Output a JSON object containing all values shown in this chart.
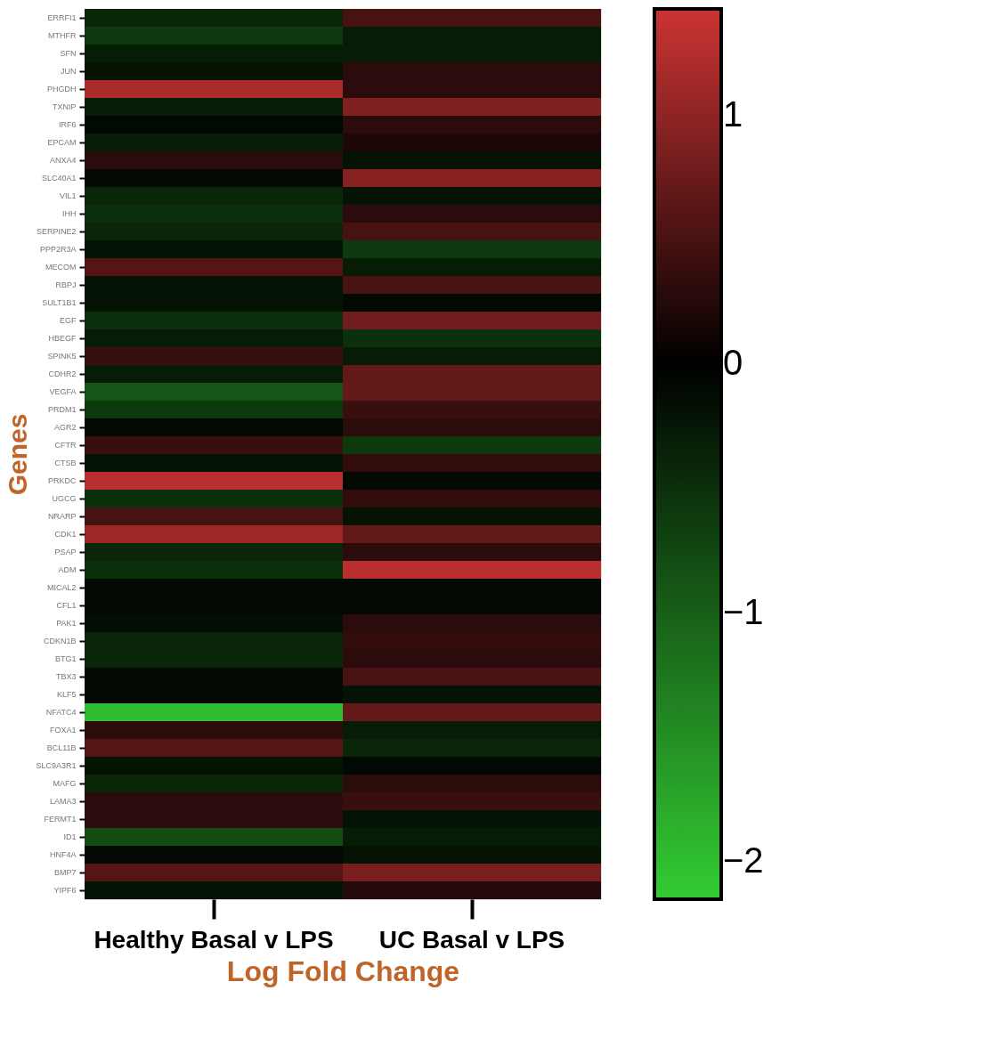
{
  "chart_data": {
    "type": "heatmap",
    "xlabel": "Log Fold Change",
    "ylabel": "Genes",
    "categories": [
      "Healthy Basal v LPS",
      "UC Basal v LPS"
    ],
    "y_categories": [
      "ERRFI1",
      "MTHFR",
      "SFN",
      "JUN",
      "PHGDH",
      "TXNIP",
      "IRF6",
      "EPCAM",
      "ANXA4",
      "SLC40A1",
      "VIL1",
      "IHH",
      "SERPINE2",
      "PPP2R3A",
      "MECOM",
      "RBPJ",
      "SULT1B1",
      "EGF",
      "HBEGF",
      "SPINK5",
      "CDHR2",
      "VEGFA",
      "PRDM1",
      "AGR2",
      "CFTR",
      "CTSB",
      "PRKDC",
      "UGCG",
      "NRARP",
      "CDK1",
      "PSAP",
      "ADM",
      "MICAL2",
      "CFL1",
      "PAK1",
      "CDKN1B",
      "BTG1",
      "TBX3",
      "KLF5",
      "NFATC4",
      "FOXA1",
      "BCL11B",
      "SLC9A3R1",
      "MAFG",
      "LAMA3",
      "FERMT1",
      "ID1",
      "HNF4A",
      "BMP7",
      "YIPF6"
    ],
    "cells": [
      [
        -0.4,
        0.5
      ],
      [
        -0.6,
        -0.3
      ],
      [
        -0.3,
        -0.3
      ],
      [
        -0.2,
        0.3
      ],
      [
        1.2,
        0.3
      ],
      [
        -0.3,
        0.9
      ],
      [
        -0.1,
        0.3
      ],
      [
        -0.3,
        0.2
      ],
      [
        0.3,
        -0.2
      ],
      [
        -0.1,
        0.95
      ],
      [
        -0.4,
        -0.2
      ],
      [
        -0.5,
        0.3
      ],
      [
        -0.4,
        0.5
      ],
      [
        -0.2,
        -0.6
      ],
      [
        0.6,
        -0.3
      ],
      [
        -0.2,
        0.5
      ],
      [
        -0.2,
        -0.1
      ],
      [
        -0.5,
        0.8
      ],
      [
        -0.3,
        -0.5
      ],
      [
        0.4,
        -0.3
      ],
      [
        -0.3,
        0.7
      ],
      [
        -0.9,
        0.7
      ],
      [
        -0.6,
        0.4
      ],
      [
        -0.1,
        0.3
      ],
      [
        0.4,
        -0.6
      ],
      [
        -0.2,
        0.35
      ],
      [
        1.3,
        -0.1
      ],
      [
        -0.5,
        0.35
      ],
      [
        0.5,
        -0.2
      ],
      [
        1.1,
        0.7
      ],
      [
        -0.4,
        0.3
      ],
      [
        -0.5,
        1.3
      ],
      [
        -0.1,
        -0.1
      ],
      [
        -0.1,
        -0.1
      ],
      [
        -0.15,
        0.3
      ],
      [
        -0.4,
        0.35
      ],
      [
        -0.4,
        0.3
      ],
      [
        -0.1,
        0.5
      ],
      [
        -0.1,
        -0.2
      ],
      [
        -2.0,
        0.7
      ],
      [
        0.3,
        -0.3
      ],
      [
        0.6,
        -0.4
      ],
      [
        -0.2,
        -0.1
      ],
      [
        -0.4,
        0.3
      ],
      [
        0.3,
        0.4
      ],
      [
        0.3,
        -0.2
      ],
      [
        -0.8,
        -0.3
      ],
      [
        -0.1,
        -0.2
      ],
      [
        0.6,
        0.85
      ],
      [
        -0.2,
        0.25
      ]
    ],
    "clim": [
      -2.15,
      1.43
    ],
    "cticks": [
      1,
      0,
      -1,
      -2
    ]
  }
}
